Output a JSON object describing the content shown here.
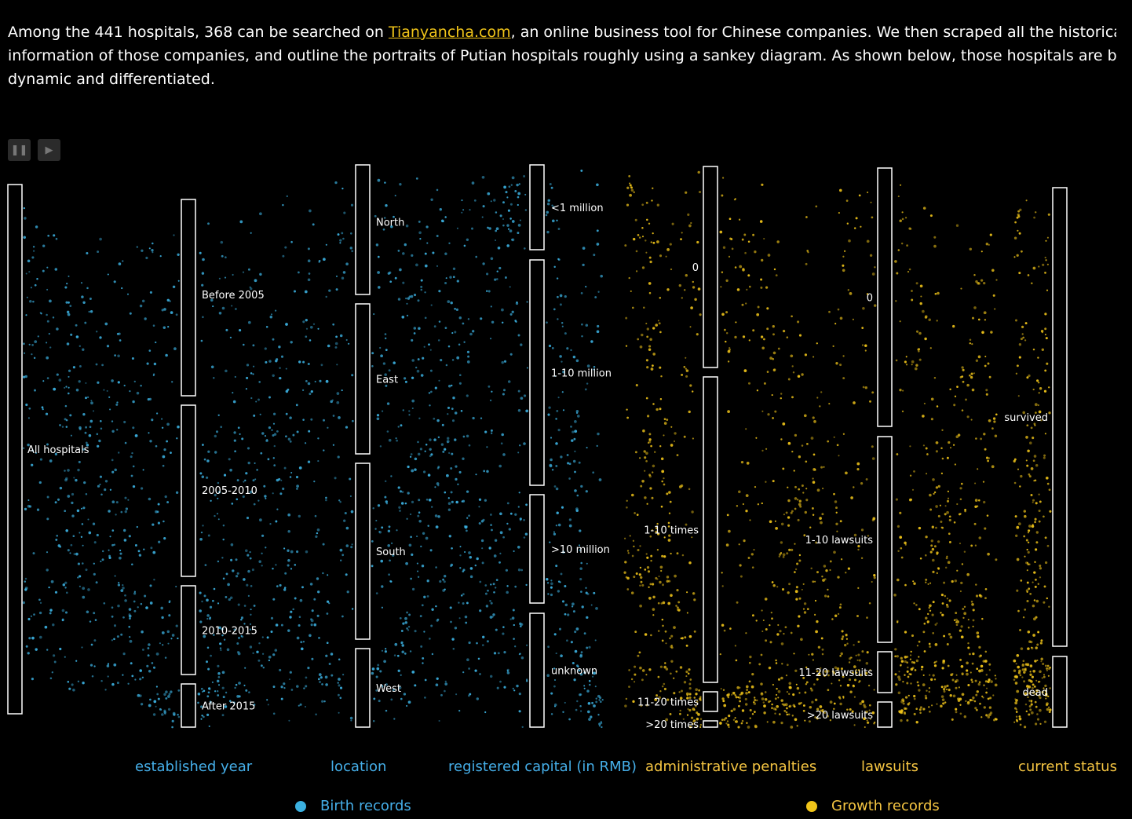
{
  "intro": {
    "line1_before": "Among the 441 hospitals, 368 can be searched on ",
    "link_text": "Tianyancha.com",
    "line1_after": ", an online business tool for Chinese companies. We then scraped all the historica",
    "line2": "information of those companies, and outline the portraits of Putian hospitals roughly using a sankey diagram. As shown below, those hospitals are b",
    "line3": "dynamic and differentiated."
  },
  "controls": {
    "pause_icon": "pause-icon",
    "play_icon": "play-icon"
  },
  "colors": {
    "birth": "#3bb0e0",
    "growth": "#f0c419",
    "axis_blue": "#45aee8",
    "axis_yellow": "#f5c542",
    "link": "#f0c419"
  },
  "columns": [
    {
      "axis": "",
      "nodes": [
        {
          "label": "All hospitals"
        }
      ]
    },
    {
      "axis": "established year",
      "nodes": [
        {
          "label": "Before 2005"
        },
        {
          "label": "2005-2010"
        },
        {
          "label": "2010-2015"
        },
        {
          "label": "After 2015"
        }
      ]
    },
    {
      "axis": "location",
      "nodes": [
        {
          "label": "North"
        },
        {
          "label": "East"
        },
        {
          "label": "South"
        },
        {
          "label": "West"
        }
      ]
    },
    {
      "axis": "registered capital (in RMB)",
      "nodes": [
        {
          "label": "<1 million"
        },
        {
          "label": "1-10 million"
        },
        {
          "label": ">10 million"
        },
        {
          "label": "unknown"
        }
      ]
    },
    {
      "axis": "administrative penalties",
      "nodes": [
        {
          "label": "0"
        },
        {
          "label": "1-10 times"
        },
        {
          "label": "11-20 times"
        },
        {
          "label": ">20 times"
        }
      ]
    },
    {
      "axis": "lawsuits",
      "nodes": [
        {
          "label": "0"
        },
        {
          "label": "1-10 lawsuits"
        },
        {
          "label": "11-20 lawsuits"
        },
        {
          "label": ">20 lawsuits"
        }
      ]
    },
    {
      "axis": "current status",
      "nodes": [
        {
          "label": "survived"
        },
        {
          "label": "dead"
        }
      ]
    }
  ],
  "legend": [
    {
      "label": "Birth records",
      "color": "#3bb0e0"
    },
    {
      "label": "Growth records",
      "color": "#f0c419"
    }
  ]
}
